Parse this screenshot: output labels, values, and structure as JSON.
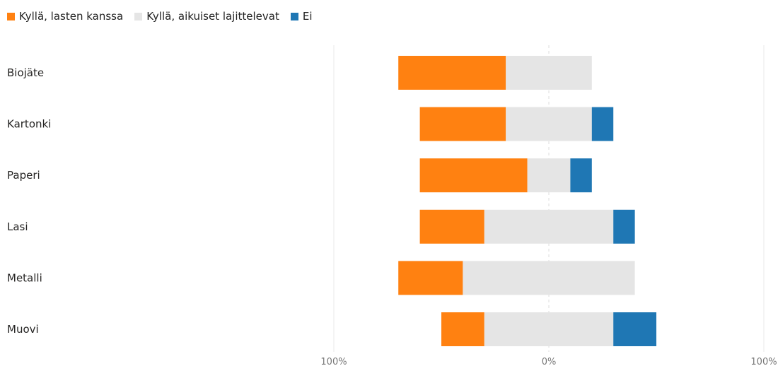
{
  "chart_data": {
    "type": "bar",
    "orientation": "horizontal-diverging",
    "categories": [
      "Biojäte",
      "Kartonki",
      "Paperi",
      "Lasi",
      "Metalli",
      "Muovi"
    ],
    "series": [
      {
        "name": "Kyllä, lasten kanssa",
        "color": "#FF8111",
        "direction": "left",
        "values": [
          50,
          40,
          50,
          30,
          30,
          20
        ]
      },
      {
        "name": "Kyllä, aikuiset lajittelevat",
        "color": "#E5E5E5",
        "direction": "split",
        "values": [
          40,
          40,
          20,
          60,
          80,
          60
        ]
      },
      {
        "name": "Ei",
        "color": "#1F77B4",
        "direction": "right",
        "values": [
          0,
          10,
          10,
          10,
          0,
          20
        ]
      }
    ],
    "x_tick_labels": [
      "100%",
      "0%",
      "100%"
    ],
    "xlim": [
      -100,
      100
    ],
    "legend_position": "top-left",
    "grid": true
  }
}
